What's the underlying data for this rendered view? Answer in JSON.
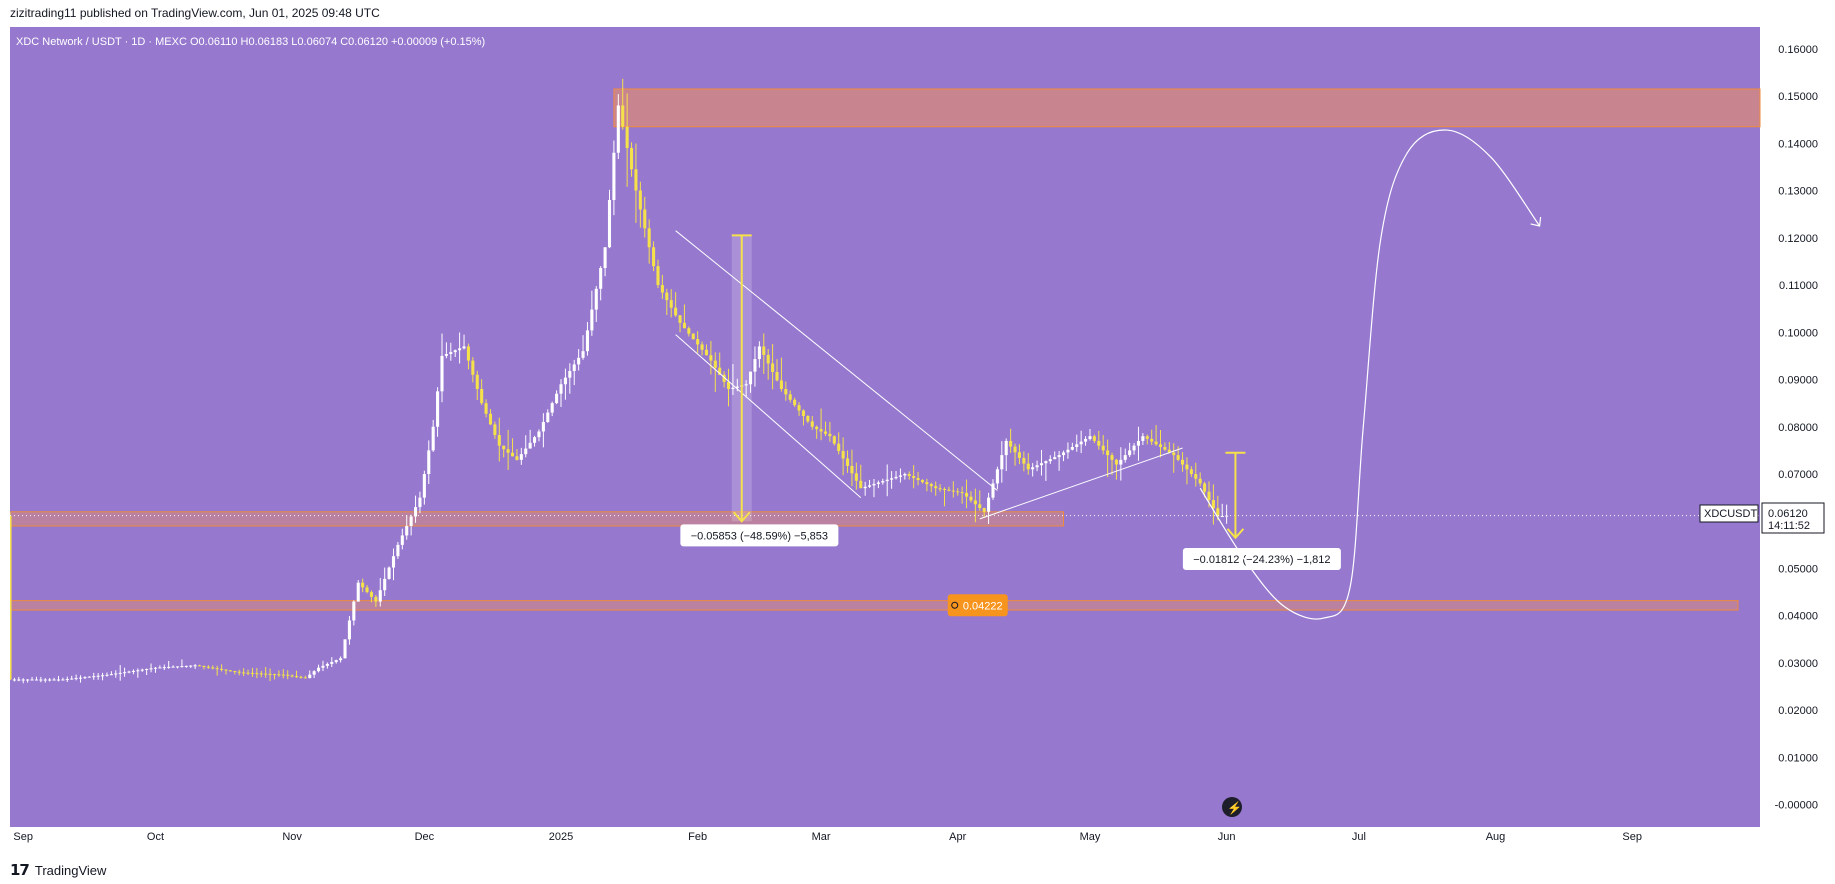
{
  "header": {
    "publisher_line": "zizitrading11 published on TradingView.com, Jun 01, 2025 09:48 UTC"
  },
  "footer": {
    "brand": "TradingView",
    "logo": "tv-logo-icon"
  },
  "colors": {
    "background": "#9678cf",
    "candle_up": "#ffffff",
    "candle_down": "#f5e14a",
    "zone_fill": "#d98a7a",
    "zone_border": "#f08a3c",
    "arrow": "#f5e14a",
    "price_label_bg": "#f7941d"
  },
  "chart_data": {
    "type": "candlestick",
    "symbol_line": "XDC Network / USDT · 1D · MEXC  O0.06110  H0.06183  L0.06074  C0.06120  +0.00009 (+0.15%)",
    "ticker": "XDCUSDT",
    "last_price": "0.06120",
    "countdown": "14:11:52",
    "y_tick_labels": [
      "0.16000",
      "0.15000",
      "0.14000",
      "0.13000",
      "0.12000",
      "0.11000",
      "0.10000",
      "0.09000",
      "0.08000",
      "0.07000",
      "0.06000",
      "0.05000",
      "0.04000",
      "0.03000",
      "0.02000",
      "0.01000",
      "-0.00000"
    ],
    "y_ticks": [
      0.16,
      0.15,
      0.14,
      0.13,
      0.12,
      0.11,
      0.1,
      0.09,
      0.08,
      0.07,
      0.06,
      0.05,
      0.04,
      0.03,
      0.02,
      0.01,
      0.0
    ],
    "ylim": [
      -0.0026,
      0.1625
    ],
    "x_tick_labels": [
      "Sep",
      "Oct",
      "Nov",
      "Dec",
      "2025",
      "Feb",
      "Mar",
      "Apr",
      "May",
      "Jun",
      "Jul",
      "Aug",
      "Sep"
    ],
    "x_ticks": [
      "2024-09-01",
      "2024-10-01",
      "2024-11-01",
      "2024-12-01",
      "2025-01-01",
      "2025-02-01",
      "2025-03-01",
      "2025-04-01",
      "2025-05-01",
      "2025-06-01",
      "2025-07-01",
      "2025-08-01",
      "2025-09-01"
    ],
    "xlim": [
      "2024-08-29",
      "2025-09-30"
    ],
    "price_path": [
      [
        "2024-08-29",
        0.0265
      ],
      [
        "2024-09-10",
        0.0265
      ],
      [
        "2024-09-20",
        0.0275
      ],
      [
        "2024-10-01",
        0.029
      ],
      [
        "2024-10-10",
        0.0295
      ],
      [
        "2024-10-20",
        0.028
      ],
      [
        "2024-10-30",
        0.0275
      ],
      [
        "2024-11-04",
        0.0268
      ],
      [
        "2024-11-07",
        0.029
      ],
      [
        "2024-11-12",
        0.031
      ],
      [
        "2024-11-16",
        0.047
      ],
      [
        "2024-11-20",
        0.043
      ],
      [
        "2024-11-25",
        0.055
      ],
      [
        "2024-11-30",
        0.065
      ],
      [
        "2024-12-03",
        0.08
      ],
      [
        "2024-12-05",
        0.095
      ],
      [
        "2024-12-10",
        0.097
      ],
      [
        "2024-12-14",
        0.085
      ],
      [
        "2024-12-18",
        0.076
      ],
      [
        "2024-12-22",
        0.073
      ],
      [
        "2024-12-27",
        0.079
      ],
      [
        "2025-01-01",
        0.089
      ],
      [
        "2025-01-06",
        0.096
      ],
      [
        "2025-01-11",
        0.118
      ],
      [
        "2025-01-14",
        0.148
      ],
      [
        "2025-01-18",
        0.13
      ],
      [
        "2025-01-23",
        0.11
      ],
      [
        "2025-01-28",
        0.102
      ],
      [
        "2025-02-04",
        0.094
      ],
      [
        "2025-02-08",
        0.088
      ],
      [
        "2025-02-12",
        0.089
      ],
      [
        "2025-02-15",
        0.097
      ],
      [
        "2025-02-20",
        0.088
      ],
      [
        "2025-02-27",
        0.08
      ],
      [
        "2025-03-03",
        0.078
      ],
      [
        "2025-03-10",
        0.067
      ],
      [
        "2025-03-20",
        0.07
      ],
      [
        "2025-03-27",
        0.067
      ],
      [
        "2025-04-02",
        0.066
      ],
      [
        "2025-04-07",
        0.062
      ],
      [
        "2025-04-12",
        0.077
      ],
      [
        "2025-04-17",
        0.071
      ],
      [
        "2025-04-24",
        0.074
      ],
      [
        "2025-05-01",
        0.078
      ],
      [
        "2025-05-07",
        0.072
      ],
      [
        "2025-05-13",
        0.078
      ],
      [
        "2025-05-20",
        0.074
      ],
      [
        "2025-05-26",
        0.068
      ],
      [
        "2025-05-30",
        0.061
      ],
      [
        "2025-06-01",
        0.0612
      ]
    ],
    "zones": [
      {
        "top": 0.1515,
        "bottom": 0.1435,
        "from": "2025-01-13",
        "to": "2025-09-30"
      },
      {
        "top": 0.062,
        "bottom": 0.059,
        "from": "2024-08-29",
        "to": "2025-04-25"
      },
      {
        "top": 0.0432,
        "bottom": 0.0412,
        "from": "2024-08-29",
        "to": "2025-09-25"
      }
    ],
    "level_label": "0.04222",
    "level_value": 0.04222,
    "level_label_date": "2025-04-01",
    "measurements": [
      {
        "text": "−0.05853 (−48.59%) −5,853",
        "from_price": 0.1205,
        "to_price": 0.06,
        "date": "2025-02-11",
        "label_date": "2025-02-15",
        "label_price": 0.057
      },
      {
        "text": "−0.01812 (−24.23%) −1,812",
        "from_price": 0.0745,
        "to_price": 0.0565,
        "date": "2025-06-03",
        "label_date": "2025-06-09",
        "label_price": 0.052
      }
    ],
    "channel": [
      [
        [
          "2025-01-27",
          0.1215
        ],
        [
          "2025-04-10",
          0.0665
        ]
      ],
      [
        [
          "2025-01-27",
          0.0995
        ],
        [
          "2025-03-10",
          0.065
        ]
      ]
    ],
    "rising_wedge": [
      [
        "2025-04-06",
        0.0605
      ],
      [
        "2025-05-22",
        0.0755
      ]
    ],
    "projection": [
      [
        "2025-05-26",
        0.067
      ],
      [
        "2025-06-05",
        0.052
      ],
      [
        "2025-06-14",
        0.042
      ],
      [
        "2025-06-23",
        0.0395
      ],
      [
        "2025-06-29",
        0.046
      ],
      [
        "2025-07-02",
        0.08
      ],
      [
        "2025-07-06",
        0.12
      ],
      [
        "2025-07-12",
        0.138
      ],
      [
        "2025-07-21",
        0.1428
      ],
      [
        "2025-07-31",
        0.137
      ],
      [
        "2025-08-11",
        0.1225
      ]
    ],
    "current_price": 0.0612
  }
}
